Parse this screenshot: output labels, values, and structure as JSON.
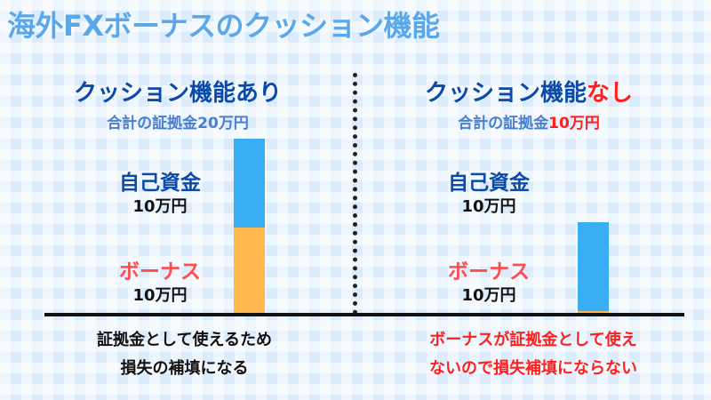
{
  "title": "海外FXボーナスのクッション機能",
  "left": {
    "heading_main": "クッション機能",
    "heading_accent": "あり",
    "subtitle_prefix": "合計の証拠金",
    "subtitle_value": "20万円",
    "own_label": "自己資金",
    "own_amount": "10万円",
    "bonus_label": "ボーナス",
    "bonus_amount": "10万円",
    "caption_line1": "証拠金として使えるため",
    "caption_line2": "損失の補填になる"
  },
  "right": {
    "heading_main": "クッション機能",
    "heading_accent": "なし",
    "subtitle_prefix": "合計の証拠金",
    "subtitle_value": "10万円",
    "own_label": "自己資金",
    "own_amount": "10万円",
    "bonus_label": "ボーナス",
    "bonus_amount": "10万円",
    "caption_line1": "ボーナスが証拠金として使え",
    "caption_line2": "ないので損失補填にならない"
  },
  "colors": {
    "own_funds": "#3aaef5",
    "bonus": "#ffb84d",
    "accent_red": "#ff1f1f",
    "heading_blue": "#0b4aa8"
  }
}
